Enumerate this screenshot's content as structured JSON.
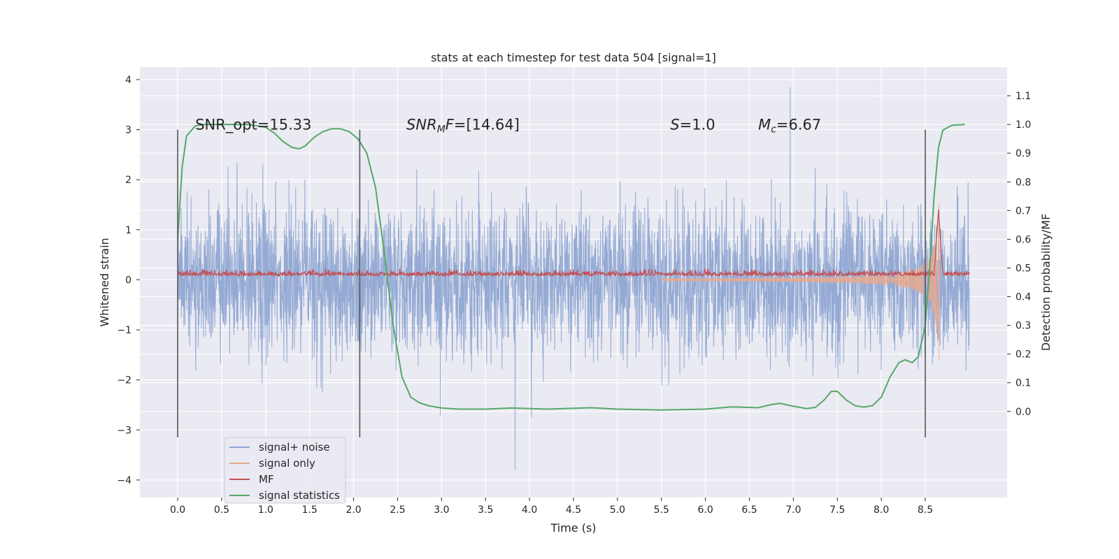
{
  "chart_data": {
    "type": "line",
    "title": "stats at each timestep for test data 504 [signal=1]",
    "xlabel": "Time (s)",
    "ylabel": "Whitened strain",
    "ylabel_right": "Detection probability/MF",
    "xlim": [
      -0.43,
      9.43
    ],
    "ylim": [
      -4.35,
      4.25
    ],
    "ylim_right": [
      -0.3,
      1.2
    ],
    "x_ticks": [
      "0.0",
      "0.5",
      "1.0",
      "1.5",
      "2.0",
      "2.5",
      "3.0",
      "3.5",
      "4.0",
      "4.5",
      "5.0",
      "5.5",
      "6.0",
      "6.5",
      "7.0",
      "7.5",
      "8.0",
      "8.5"
    ],
    "y_ticks": [
      "4",
      "3",
      "2",
      "1",
      "0",
      "−1",
      "−2",
      "−3",
      "−4"
    ],
    "y_ticks_right": [
      "1.1",
      "1.0",
      "0.9",
      "0.8",
      "0.7",
      "0.6",
      "0.5",
      "0.4",
      "0.3",
      "0.2",
      "0.1",
      "0.0"
    ],
    "annotations": [
      {
        "x": 0.2,
        "y": 3.0,
        "parts": [
          {
            "t": "SNR_opt=15.33",
            "i": false
          }
        ]
      },
      {
        "x": 2.6,
        "y": 3.0,
        "parts": [
          {
            "t": "SNR",
            "i": true
          },
          {
            "t": "M",
            "i": true,
            "sub": true
          },
          {
            "t": "F",
            "i": true
          },
          {
            "t": "=[14.64]",
            "i": false
          }
        ]
      },
      {
        "x": 5.6,
        "y": 3.0,
        "parts": [
          {
            "t": "S",
            "i": true
          },
          {
            "t": "=1.0",
            "i": false
          }
        ]
      },
      {
        "x": 6.6,
        "y": 3.0,
        "parts": [
          {
            "t": "M",
            "i": true
          },
          {
            "t": "c",
            "i": true,
            "sub": true
          },
          {
            "t": "=6.67",
            "i": false
          }
        ]
      }
    ],
    "vlines": [
      {
        "x": 0.0,
        "y0": -3.15,
        "y1": 3.0
      },
      {
        "x": 2.07,
        "y0": -3.15,
        "y1": 3.0
      },
      {
        "x": 8.5,
        "y0": -3.15,
        "y1": 3.0
      }
    ],
    "series": [
      {
        "name": "signal+ noise",
        "color": "#8fa6d2",
        "kind": "noise",
        "x_range": [
          0.0,
          9.0
        ],
        "approx_envelope": [
          -3.8,
          3.85
        ]
      },
      {
        "name": "signal only",
        "color": "#e8a98e",
        "kind": "chirp",
        "x_range": [
          5.5,
          8.66
        ],
        "approx_peak": 1.8
      },
      {
        "name": "MF",
        "color": "#c44e52",
        "kind": "mf",
        "x_range": [
          0.0,
          9.0
        ],
        "approx_level": 0.1
      },
      {
        "name": "signal statistics",
        "color": "#55a868",
        "kind": "stat",
        "axis": "right",
        "points": [
          [
            0.0,
            0.6
          ],
          [
            0.05,
            0.85
          ],
          [
            0.1,
            0.96
          ],
          [
            0.2,
            0.995
          ],
          [
            0.3,
            1.0
          ],
          [
            0.5,
            1.0
          ],
          [
            0.8,
            1.0
          ],
          [
            1.0,
            0.99
          ],
          [
            1.1,
            0.97
          ],
          [
            1.2,
            0.94
          ],
          [
            1.3,
            0.92
          ],
          [
            1.38,
            0.915
          ],
          [
            1.45,
            0.925
          ],
          [
            1.55,
            0.955
          ],
          [
            1.65,
            0.975
          ],
          [
            1.75,
            0.985
          ],
          [
            1.85,
            0.985
          ],
          [
            1.95,
            0.975
          ],
          [
            2.05,
            0.95
          ],
          [
            2.15,
            0.9
          ],
          [
            2.25,
            0.78
          ],
          [
            2.35,
            0.55
          ],
          [
            2.45,
            0.3
          ],
          [
            2.55,
            0.12
          ],
          [
            2.65,
            0.05
          ],
          [
            2.75,
            0.03
          ],
          [
            2.85,
            0.02
          ],
          [
            3.0,
            0.012
          ],
          [
            3.2,
            0.008
          ],
          [
            3.5,
            0.008
          ],
          [
            3.8,
            0.012
          ],
          [
            4.2,
            0.008
          ],
          [
            4.7,
            0.013
          ],
          [
            5.0,
            0.008
          ],
          [
            5.5,
            0.005
          ],
          [
            6.0,
            0.008
          ],
          [
            6.3,
            0.016
          ],
          [
            6.6,
            0.013
          ],
          [
            6.75,
            0.024
          ],
          [
            6.85,
            0.028
          ],
          [
            7.0,
            0.018
          ],
          [
            7.15,
            0.01
          ],
          [
            7.25,
            0.014
          ],
          [
            7.35,
            0.04
          ],
          [
            7.43,
            0.07
          ],
          [
            7.5,
            0.07
          ],
          [
            7.6,
            0.04
          ],
          [
            7.7,
            0.02
          ],
          [
            7.8,
            0.015
          ],
          [
            7.9,
            0.02
          ],
          [
            8.0,
            0.05
          ],
          [
            8.1,
            0.12
          ],
          [
            8.2,
            0.17
          ],
          [
            8.27,
            0.18
          ],
          [
            8.35,
            0.17
          ],
          [
            8.42,
            0.19
          ],
          [
            8.5,
            0.3
          ],
          [
            8.55,
            0.5
          ],
          [
            8.6,
            0.75
          ],
          [
            8.65,
            0.92
          ],
          [
            8.7,
            0.98
          ],
          [
            8.8,
            0.997
          ],
          [
            8.95,
            1.0
          ]
        ]
      }
    ],
    "legend_position": "lower-left",
    "grid": true
  }
}
